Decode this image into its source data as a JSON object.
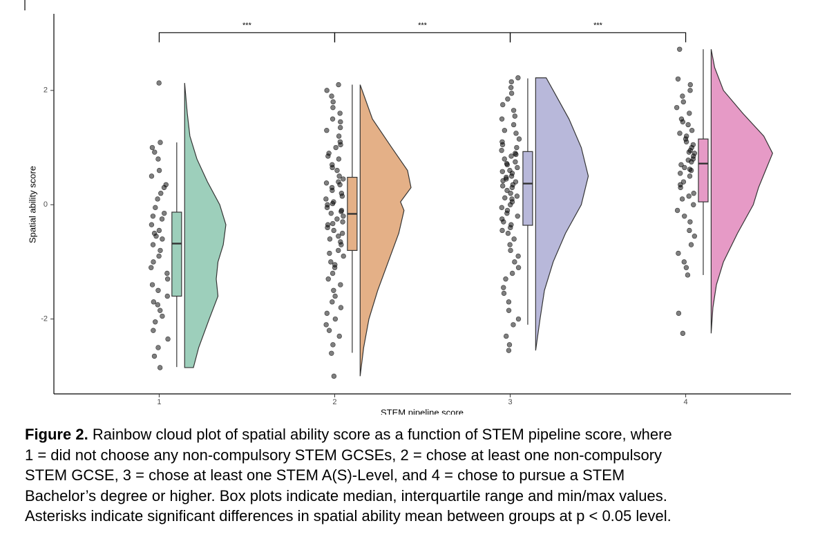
{
  "chart_data": {
    "type": "raincloud",
    "x_label": "STEM pipeline score",
    "y_label": "Spatial ability score",
    "xlim": [
      0.4,
      4.6
    ],
    "ylim": [
      -3.31,
      3.34
    ],
    "xticks": [
      1,
      2,
      3,
      4
    ],
    "yticks": [
      -2,
      0,
      2
    ],
    "annotations": [
      {
        "from": 1,
        "to": 2,
        "y": 3.01,
        "text": "***"
      },
      {
        "from": 2,
        "to": 3,
        "y": 3.01,
        "text": "***"
      },
      {
        "from": 3,
        "to": 4,
        "y": 3.01,
        "text": "***"
      }
    ],
    "groups": [
      {
        "x": 1,
        "color": "#9dcfbb",
        "box": {
          "min": -2.84,
          "q1": -1.6,
          "median": -0.68,
          "q3": -0.13,
          "max": 1.09
        },
        "violin_y": [
          -2.85,
          -2.5,
          -2.0,
          -1.6,
          -1.3,
          -1.0,
          -0.7,
          -0.35,
          0,
          0.4,
          0.8,
          1.2,
          1.6,
          2.13
        ],
        "violin_width": [
          0.05,
          0.08,
          0.14,
          0.19,
          0.18,
          0.19,
          0.22,
          0.235,
          0.2,
          0.13,
          0.07,
          0.03,
          0.015,
          0
        ],
        "points": [
          2.13,
          1.09,
          1.0,
          0.92,
          0.8,
          0.6,
          0.5,
          0.35,
          0.2,
          0.1,
          -0.05,
          -0.15,
          -0.25,
          -0.35,
          -0.45,
          -0.5,
          -0.6,
          -0.7,
          -0.8,
          -0.9,
          -1.0,
          -1.1,
          -1.2,
          -1.3,
          -1.4,
          -1.5,
          -1.6,
          -1.7,
          -1.75,
          -1.85,
          -1.95,
          -2.05,
          -2.2,
          -2.35,
          -2.5,
          -2.65,
          -2.85,
          -0.55,
          -0.2,
          0.3
        ]
      },
      {
        "x": 2,
        "color": "#e4b087",
        "box": {
          "min": -2.59,
          "q1": -0.8,
          "median": -0.16,
          "q3": 0.48,
          "max": 2.1
        },
        "violin_y": [
          -3.0,
          -2.5,
          -2.0,
          -1.5,
          -1.0,
          -0.5,
          -0.1,
          0.05,
          0.3,
          0.6,
          1.0,
          1.5,
          2.1
        ],
        "violin_width": [
          0,
          0.02,
          0.05,
          0.1,
          0.16,
          0.22,
          0.25,
          0.23,
          0.29,
          0.27,
          0.18,
          0.07,
          0
        ],
        "points": [
          2.1,
          2.0,
          1.9,
          1.8,
          1.7,
          1.6,
          1.5,
          1.45,
          1.35,
          1.3,
          1.2,
          1.1,
          1.05,
          1.0,
          0.9,
          0.85,
          0.8,
          0.7,
          0.65,
          0.6,
          0.5,
          0.45,
          0.4,
          0.35,
          0.3,
          0.25,
          0.2,
          0.15,
          0.1,
          0.05,
          0.0,
          -0.05,
          -0.1,
          -0.15,
          -0.2,
          -0.25,
          -0.3,
          -0.35,
          -0.4,
          -0.45,
          -0.5,
          -0.55,
          -0.6,
          -0.65,
          -0.7,
          -0.8,
          -0.85,
          -0.9,
          -1.0,
          -1.05,
          -1.1,
          -1.2,
          -1.3,
          -1.4,
          -1.5,
          -1.6,
          -1.7,
          -1.8,
          -1.9,
          -2.0,
          -2.1,
          -2.2,
          -2.3,
          -2.45,
          -2.6,
          -3.0,
          0.02,
          -0.12,
          0.38,
          -0.33
        ]
      },
      {
        "x": 3,
        "color": "#b8b8da",
        "box": {
          "min": -2.1,
          "q1": -0.36,
          "median": 0.37,
          "q3": 0.93,
          "max": 2.21
        },
        "violin_y": [
          -2.55,
          -2.0,
          -1.5,
          -1.0,
          -0.5,
          0,
          0.5,
          1.0,
          1.5,
          2.0,
          2.22
        ],
        "violin_width": [
          0,
          0.025,
          0.05,
          0.1,
          0.17,
          0.26,
          0.3,
          0.26,
          0.19,
          0.1,
          0.06
        ],
        "points": [
          2.22,
          2.15,
          2.05,
          1.95,
          1.85,
          1.75,
          1.65,
          1.55,
          1.5,
          1.4,
          1.3,
          1.25,
          1.15,
          1.1,
          1.0,
          0.95,
          0.9,
          0.85,
          0.8,
          0.75,
          0.7,
          0.65,
          0.6,
          0.55,
          0.5,
          0.45,
          0.4,
          0.35,
          0.3,
          0.25,
          0.2,
          0.15,
          0.1,
          0.05,
          0.0,
          -0.05,
          -0.1,
          -0.2,
          -0.25,
          -0.3,
          -0.4,
          -0.45,
          -0.5,
          -0.6,
          -0.7,
          -0.8,
          -0.9,
          -1.0,
          -1.1,
          -1.2,
          -1.3,
          -1.45,
          -1.55,
          -1.7,
          -1.85,
          -2.0,
          -2.1,
          -2.3,
          -2.45,
          -2.55,
          0.42,
          0.58,
          0.33,
          0.72,
          0.12,
          1.05,
          -0.15,
          0.48,
          0.88,
          -0.35
        ]
      },
      {
        "x": 4,
        "color": "#e69ac6",
        "box": {
          "min": -1.23,
          "q1": 0.05,
          "median": 0.72,
          "q3": 1.15,
          "max": 2.72
        },
        "violin_y": [
          -2.25,
          -1.8,
          -1.4,
          -1.0,
          -0.5,
          0,
          0.3,
          0.6,
          0.9,
          1.2,
          1.6,
          2.0,
          2.4,
          2.72
        ],
        "violin_width": [
          0,
          0.01,
          0.03,
          0.07,
          0.15,
          0.24,
          0.27,
          0.31,
          0.35,
          0.3,
          0.18,
          0.07,
          0.02,
          0
        ],
        "points": [
          2.72,
          2.2,
          2.1,
          2.0,
          1.9,
          1.8,
          1.7,
          1.6,
          1.5,
          1.45,
          1.4,
          1.3,
          1.25,
          1.2,
          1.1,
          1.05,
          1.0,
          0.95,
          0.9,
          0.85,
          0.8,
          0.75,
          0.7,
          0.65,
          0.6,
          0.55,
          0.5,
          0.4,
          0.35,
          0.3,
          0.2,
          0.15,
          0.1,
          0.0,
          -0.1,
          -0.2,
          -0.3,
          -0.45,
          -0.55,
          -0.7,
          -0.85,
          -1.0,
          -1.1,
          -1.23,
          -1.9,
          -2.25,
          0.92,
          1.15,
          0.78,
          0.62
        ]
      }
    ]
  },
  "caption": {
    "label": "Figure 2.",
    "lines": [
      "Rainbow cloud plot of spatial ability score as a function of STEM pipeline score, where",
      "1 = did not choose any non-compulsory STEM GCSEs, 2 = chose at least one non-compulsory",
      "STEM GCSE, 3 = chose at least one STEM A(S)-Level, and 4 = chose to pursue a STEM",
      "Bachelor’s degree or higher. Box plots indicate median, interquartile range and min/max values.",
      "Asterisks indicate significant differences in spatial ability mean between groups at p < 0.05 level."
    ]
  }
}
